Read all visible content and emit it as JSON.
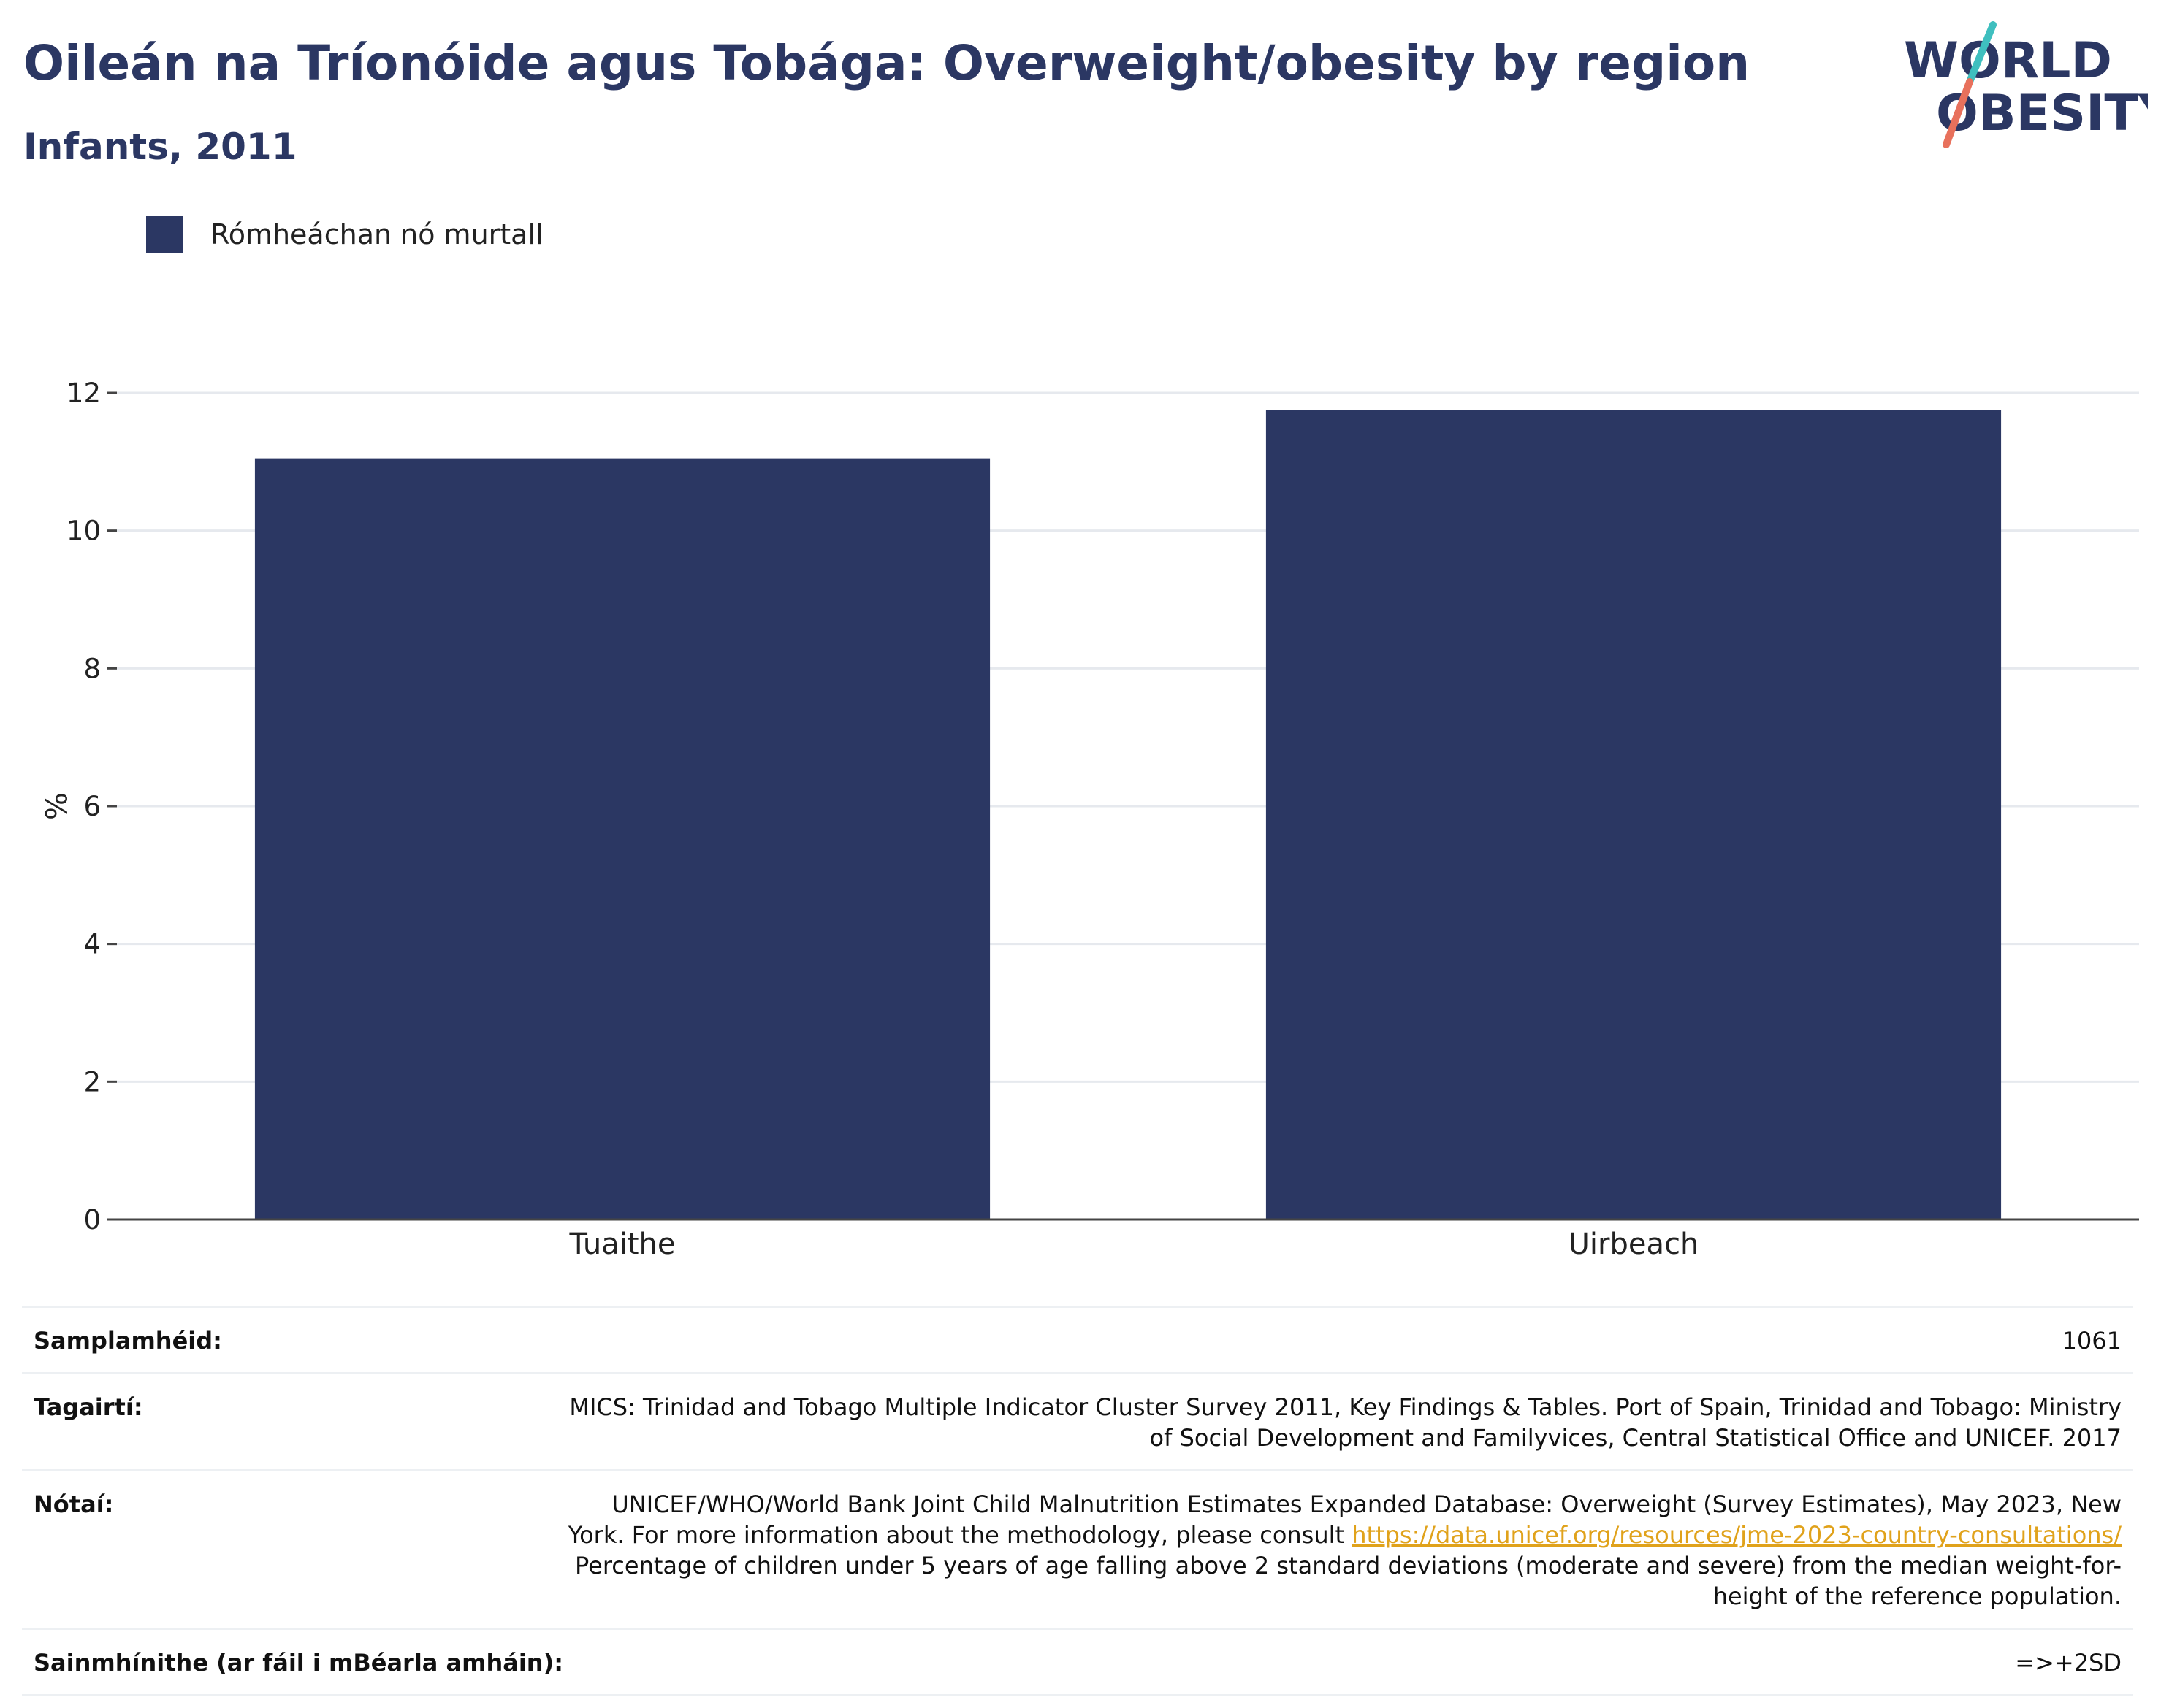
{
  "header": {
    "title": "Oileán na Tríonóide agus Tobága: Overweight/obesity by region",
    "subtitle": "Infants, 2011"
  },
  "logo": {
    "line1": "WORLD",
    "line2": "OBESITY",
    "colors": {
      "text": "#2b3763",
      "slash_top": "#3fbfbf",
      "slash_bottom": "#e8715c"
    }
  },
  "colors": {
    "bar": "#2b3763",
    "gridline": "#e6e9ee",
    "axis": "#444444",
    "link": "#e0a21b"
  },
  "chart_data": {
    "type": "bar",
    "categories": [
      "Tuaithe",
      "Uirbeach"
    ],
    "series": [
      {
        "name": "Rómheáchan nó murtall",
        "values": [
          11.05,
          11.75
        ],
        "color": "#2b3763"
      }
    ],
    "title": "Oileán na Tríonóide agus Tobága: Overweight/obesity by region",
    "subtitle": "Infants, 2011",
    "xlabel": "",
    "ylabel": "%",
    "ylim": [
      0,
      12.6
    ],
    "yticks": [
      0,
      2,
      4,
      6,
      8,
      10,
      12
    ],
    "grid": true,
    "legend": "top-left"
  },
  "info": {
    "sample_size": {
      "label": "Samplamhéid:",
      "value": "1061"
    },
    "references": {
      "label": "Tagairtí:",
      "line1": "MICS: Trinidad and Tobago Multiple Indicator Cluster Survey 2011, Key Findings & Tables. Port of Spain, Trinidad and Tobago: Ministry",
      "line2": "of Social Development and Familyvices, Central Statistical Office and UNICEF. 2017"
    },
    "notes": {
      "label": "Nótaí:",
      "line1": "UNICEF/WHO/World Bank Joint Child Malnutrition Estimates Expanded Database: Overweight (Survey Estimates), May 2023, New",
      "line2_prefix": "York. For more information about the methodology, please consult",
      "link": "https://data.unicef.org/resources/jme-2023-country-consultations/",
      "line3": "Percentage of children under 5 years of age falling above 2 standard deviations (moderate and severe) from the median weight-for-",
      "line4": "height of the reference population."
    },
    "definitions": {
      "label": "Sainmhínithe (ar fáil i mBéarla amháin):",
      "value": "=>+2SD"
    }
  }
}
